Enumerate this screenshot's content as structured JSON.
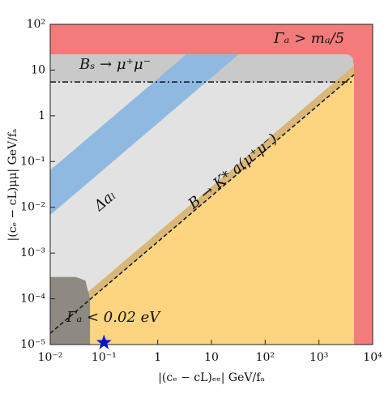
{
  "chart_data": {
    "type": "region",
    "xlabel": "|(cₑ − cL)ₑₑ| GeV/fₐ",
    "ylabel": "|(cₑ − cL)μμ| GeV/fₐ",
    "xscale": "log",
    "yscale": "log",
    "xlim": [
      0.01,
      10000
    ],
    "ylim": [
      1e-05,
      100
    ],
    "xticks": [
      {
        "value": 0.01,
        "label": "10⁻²"
      },
      {
        "value": 0.1,
        "label": "10⁻¹"
      },
      1,
      10,
      {
        "value": 100,
        "label": "10²"
      },
      {
        "value": 1000,
        "label": "10³"
      },
      {
        "value": 10000,
        "label": "10⁴"
      }
    ],
    "yticks": [
      {
        "value": 1e-05,
        "label": "10⁻⁵"
      },
      {
        "value": 0.0001,
        "label": "10⁻⁴"
      },
      {
        "value": 0.001,
        "label": "10⁻³"
      },
      {
        "value": 0.01,
        "label": "10⁻²"
      },
      {
        "value": 0.1,
        "label": "10⁻¹"
      },
      1,
      10,
      {
        "value": 100,
        "label": "10²"
      }
    ],
    "regions": [
      {
        "color": "#f47b7b",
        "x": [
          0.01,
          10000,
          10000,
          0.01
        ],
        "y": [
          1e-05,
          1e-05,
          100,
          100
        ]
      },
      {
        "color": "#e2e2e2",
        "x": [
          0.01,
          4500,
          4500,
          4200,
          3500,
          0.01
        ],
        "y": [
          1e-05,
          1e-05,
          12,
          19,
          22,
          22
        ]
      },
      {
        "color": "#c9c9c9",
        "x": [
          0.01,
          4500,
          4500,
          4200,
          3500,
          0.01
        ],
        "y": [
          5.5,
          5.5,
          12,
          19,
          22,
          22
        ]
      },
      {
        "color": "#8fb9e0",
        "x": [
          0.01,
          0.01,
          3.4,
          32
        ],
        "y": [
          0.0068,
          0.065,
          22,
          22
        ]
      },
      {
        "color": "#d9b777",
        "x": [
          0.01,
          4500,
          4500,
          0.01
        ],
        "y": [
          1.76e-05,
          7.9,
          12.6,
          2.8e-05
        ]
      },
      {
        "color": "#fdd580",
        "x": [
          0.01,
          4500,
          4500,
          0.01
        ],
        "y": [
          1e-05,
          1e-05,
          7.9,
          1.76e-05
        ]
      },
      {
        "color": "#8e8a82",
        "x": [
          0.01,
          0.055,
          0.055,
          0.045,
          0.03,
          0.01
        ],
        "y": [
          1e-05,
          1e-05,
          0.0001,
          0.00025,
          0.0003,
          0.0003
        ]
      }
    ],
    "lines": [
      {
        "style": "dashed",
        "x": [
          0.01,
          4500
        ],
        "y": [
          1.76e-05,
          7.9
        ]
      },
      {
        "style": "dashdot",
        "x": [
          0.01,
          4500
        ],
        "y": [
          5.5,
          5.5
        ]
      }
    ],
    "marker": {
      "x": 0.1,
      "y": 1.1e-05,
      "color": "#0a14d0"
    },
    "annotations": [
      "Γₐ > mₐ/5",
      "Bₛ → μ⁺μ⁻",
      "Δaₗ",
      "B → K* a(μ⁺μ⁻)",
      "Γₐ < 0.02 eV"
    ]
  }
}
